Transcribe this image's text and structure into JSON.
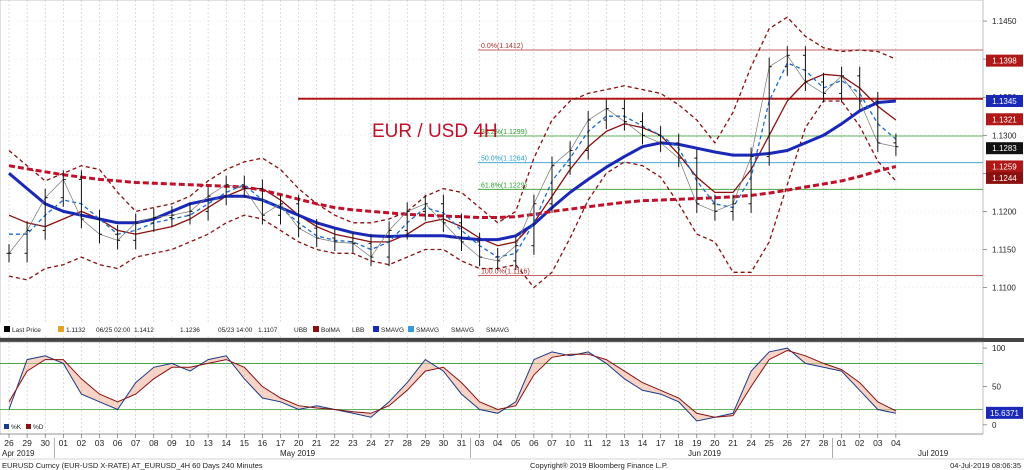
{
  "chart_data": {
    "type": "line",
    "title": "EUR / USD 4H",
    "price_axis": {
      "ylim": [
        1.106,
        1.1475
      ],
      "ticks": [
        "1.1450",
        "1.1400",
        "1.1350",
        "1.1300",
        "1.1250",
        "1.1200",
        "1.1150",
        "1.1100"
      ]
    },
    "oscillator_axis": {
      "ylim": [
        -8,
        104
      ],
      "ticks": [
        "100",
        "50",
        "0"
      ]
    },
    "x_ticks": [
      "26",
      "29",
      "30",
      "01",
      "02",
      "03",
      "06",
      "07",
      "08",
      "09",
      "10",
      "13",
      "14",
      "15",
      "16",
      "17",
      "20",
      "21",
      "22",
      "23",
      "24",
      "27",
      "28",
      "29",
      "30",
      "31",
      "03",
      "04",
      "05",
      "06",
      "07",
      "10",
      "11",
      "12",
      "13",
      "14",
      "17",
      "18",
      "19",
      "20",
      "21",
      "24",
      "25",
      "26",
      "27",
      "28",
      "01",
      "02",
      "03",
      "04"
    ],
    "months": [
      "Apr 2019",
      "May 2019",
      "Jun 2019",
      "Jul 2019"
    ],
    "price_tags": [
      {
        "label": "1.1398",
        "value": 1.1398,
        "color": "#b01818"
      },
      {
        "label": "1.1345",
        "value": 1.1345,
        "color": "#1a28b8"
      },
      {
        "label": "1.1321",
        "value": 1.1321,
        "color": "#b01818"
      },
      {
        "label": "1.1283",
        "value": 1.1283,
        "color": "#111111"
      },
      {
        "label": "1.1259",
        "value": 1.1259,
        "color": "#b01818"
      },
      {
        "label": "1.1244",
        "value": 1.1244,
        "color": "#8b1010"
      }
    ],
    "osc_tag": {
      "label": "15.6371",
      "value": 15.6371,
      "color": "#1a28b8"
    },
    "fib_levels": [
      {
        "label": "0.0%(1.1412)",
        "value": 1.1412,
        "color": "#b03030"
      },
      {
        "label": "38.2%(1.1299)",
        "value": 1.1299,
        "color": "#2a9a2a"
      },
      {
        "label": "50.0%(1.1264)",
        "value": 1.1264,
        "color": "#2a9ad0"
      },
      {
        "label": "61.8%(1.1229)",
        "value": 1.1229,
        "color": "#2a9a2a"
      },
      {
        "label": "100.0%(1.1116)",
        "value": 1.1116,
        "color": "#b03030"
      }
    ],
    "resistance_level": 1.1348,
    "series": [
      {
        "name": "Last Price",
        "color": "#000000",
        "values": [
          1.1145,
          1.1175,
          1.1218,
          1.1242,
          1.119,
          1.117,
          1.1162,
          1.1185,
          1.1192,
          1.1195,
          1.12,
          1.122,
          1.1235,
          1.123,
          1.1195,
          1.121,
          1.1178,
          1.1165,
          1.116,
          1.1158,
          1.114,
          1.1175,
          1.12,
          1.121,
          1.1185,
          1.116,
          1.114,
          1.1135,
          1.1155,
          1.121,
          1.126,
          1.128,
          1.132,
          1.1335,
          1.1318,
          1.13,
          1.129,
          1.127,
          1.121,
          1.12,
          1.121,
          1.1272,
          1.139,
          1.1405,
          1.137,
          1.1355,
          1.1378,
          1.1345,
          1.129,
          1.1285
        ]
      },
      {
        "name": "BolMA",
        "color": "#8b1010",
        "values": [
          1.1195,
          1.1185,
          1.118,
          1.119,
          1.12,
          1.119,
          1.1175,
          1.117,
          1.1175,
          1.118,
          1.119,
          1.1205,
          1.122,
          1.123,
          1.123,
          1.1215,
          1.1195,
          1.118,
          1.117,
          1.1165,
          1.116,
          1.116,
          1.117,
          1.1185,
          1.119,
          1.118,
          1.1165,
          1.1155,
          1.116,
          1.1185,
          1.122,
          1.1255,
          1.1285,
          1.1305,
          1.1315,
          1.131,
          1.13,
          1.1275,
          1.1245,
          1.1225,
          1.1225,
          1.1255,
          1.13,
          1.1345,
          1.137,
          1.138,
          1.1378,
          1.1362,
          1.1338,
          1.132
        ]
      },
      {
        "name": "UBB",
        "color": "#8b1010",
        "dashed": true,
        "values": [
          1.128,
          1.126,
          1.124,
          1.125,
          1.126,
          1.1255,
          1.1225,
          1.12,
          1.1205,
          1.121,
          1.122,
          1.124,
          1.1255,
          1.1265,
          1.127,
          1.1255,
          1.123,
          1.121,
          1.1195,
          1.1185,
          1.1185,
          1.119,
          1.12,
          1.122,
          1.123,
          1.1225,
          1.1205,
          1.1185,
          1.12,
          1.127,
          1.132,
          1.1345,
          1.1355,
          1.136,
          1.1365,
          1.136,
          1.1355,
          1.134,
          1.132,
          1.129,
          1.133,
          1.139,
          1.144,
          1.1455,
          1.143,
          1.1415,
          1.141,
          1.1412,
          1.141,
          1.14
        ]
      },
      {
        "name": "LBB",
        "color": "#8b1010",
        "dashed": true,
        "values": [
          1.1115,
          1.111,
          1.1125,
          1.113,
          1.114,
          1.113,
          1.1125,
          1.114,
          1.1145,
          1.115,
          1.116,
          1.117,
          1.1185,
          1.1195,
          1.119,
          1.1175,
          1.116,
          1.115,
          1.1145,
          1.1145,
          1.1135,
          1.113,
          1.114,
          1.115,
          1.115,
          1.1135,
          1.1125,
          1.1125,
          1.113,
          1.11,
          1.112,
          1.1165,
          1.1215,
          1.125,
          1.1265,
          1.126,
          1.1245,
          1.121,
          1.117,
          1.116,
          1.112,
          1.112,
          1.116,
          1.1235,
          1.131,
          1.1345,
          1.1345,
          1.1312,
          1.1266,
          1.124
        ]
      },
      {
        "name": "SMAVG",
        "color": "#1a28b8",
        "thick": true,
        "values": [
          1.125,
          1.123,
          1.121,
          1.12,
          1.1195,
          1.119,
          1.1185,
          1.1185,
          1.119,
          1.12,
          1.121,
          1.1215,
          1.122,
          1.122,
          1.1215,
          1.1205,
          1.1195,
          1.1185,
          1.1178,
          1.1172,
          1.1168,
          1.1167,
          1.1168,
          1.1168,
          1.1168,
          1.1165,
          1.1163,
          1.1163,
          1.1168,
          1.1183,
          1.1205,
          1.1225,
          1.1242,
          1.1258,
          1.1272,
          1.1285,
          1.129,
          1.1288,
          1.1283,
          1.1278,
          1.1274,
          1.1274,
          1.1276,
          1.128,
          1.129,
          1.13,
          1.1315,
          1.1332,
          1.1343,
          1.1345
        ]
      },
      {
        "name": "SMAVG",
        "color": "#c0102a",
        "thick": true,
        "dashed": true,
        "values": [
          1.126,
          1.1256,
          1.1252,
          1.1248,
          1.1245,
          1.1242,
          1.124,
          1.1238,
          1.1237,
          1.1236,
          1.1235,
          1.1234,
          1.1233,
          1.1232,
          1.1228,
          1.1222,
          1.1216,
          1.121,
          1.1205,
          1.1202,
          1.12,
          1.1198,
          1.1196,
          1.1195,
          1.1194,
          1.1193,
          1.1192,
          1.1192,
          1.1193,
          1.1196,
          1.12,
          1.1203,
          1.1206,
          1.1209,
          1.1212,
          1.1214,
          1.1215,
          1.1216,
          1.1217,
          1.1218,
          1.1219,
          1.1221,
          1.1224,
          1.1228,
          1.1232,
          1.1236,
          1.124,
          1.1246,
          1.1253,
          1.1259
        ]
      },
      {
        "name": "SMAVG",
        "color": "#1a6ad0",
        "dashed": true,
        "values": [
          1.117,
          1.117,
          1.1195,
          1.1215,
          1.121,
          1.119,
          1.117,
          1.1175,
          1.1185,
          1.119,
          1.1195,
          1.121,
          1.1225,
          1.1235,
          1.1215,
          1.1205,
          1.1185,
          1.1168,
          1.1162,
          1.116,
          1.115,
          1.116,
          1.1185,
          1.1205,
          1.1198,
          1.1175,
          1.1155,
          1.114,
          1.1145,
          1.1185,
          1.124,
          1.127,
          1.1305,
          1.1325,
          1.1325,
          1.1312,
          1.13,
          1.1283,
          1.124,
          1.121,
          1.1205,
          1.1245,
          1.1345,
          1.1395,
          1.1385,
          1.1362,
          1.1372,
          1.1355,
          1.1315,
          1.1295
        ]
      }
    ],
    "oscillator_series": [
      {
        "name": "%K",
        "color": "#1a3a8a",
        "values": [
          20,
          85,
          90,
          80,
          40,
          30,
          20,
          55,
          75,
          80,
          70,
          85,
          90,
          60,
          35,
          30,
          20,
          25,
          20,
          15,
          10,
          30,
          55,
          85,
          70,
          40,
          20,
          15,
          30,
          85,
          95,
          90,
          95,
          80,
          60,
          45,
          40,
          30,
          5,
          10,
          15,
          70,
          95,
          100,
          80,
          75,
          70,
          45,
          20,
          15
        ]
      },
      {
        "name": "%D",
        "color": "#8b1010",
        "values": [
          30,
          70,
          85,
          85,
          60,
          40,
          30,
          40,
          60,
          75,
          75,
          80,
          85,
          75,
          50,
          35,
          25,
          22,
          20,
          17,
          15,
          25,
          45,
          70,
          75,
          55,
          30,
          20,
          25,
          65,
          88,
          92,
          92,
          85,
          70,
          55,
          45,
          35,
          15,
          10,
          12,
          50,
          85,
          97,
          90,
          80,
          72,
          55,
          30,
          18
        ]
      }
    ],
    "legend": [
      "Last Price",
      "1.1132",
      "06/25 02:00",
      "1.1412",
      "1.1236",
      "05/23 14:00",
      "1.1107",
      "UBB",
      "BolMA",
      "LBB",
      "SMAVG",
      "SMAVG",
      "SMAVG",
      "SMAVG"
    ],
    "osc_legend": [
      "%K",
      "%D"
    ],
    "footer": {
      "left": "EURUSD Curncy (EUR-USD X-RATE) AT_EURUSD_4H 60 Days 240 Minutes",
      "center": "Copyright® 2019 Bloomberg Finance L.P.",
      "right": "04-Jul-2019 08:06:35"
    }
  }
}
